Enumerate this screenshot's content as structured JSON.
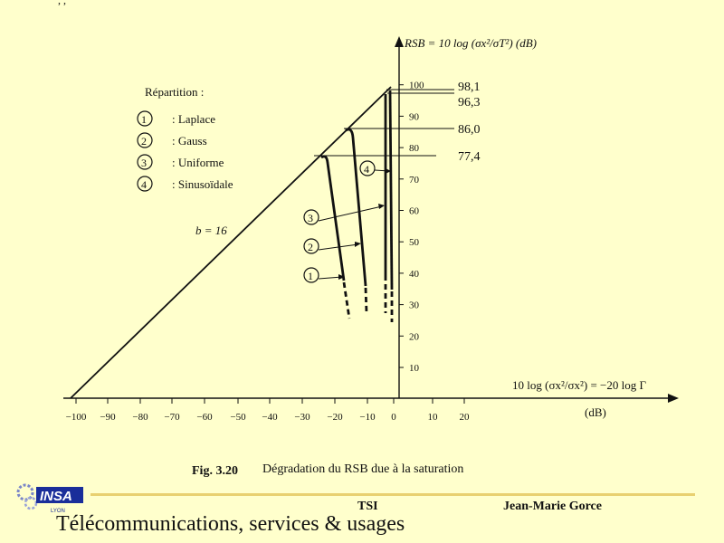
{
  "figure": {
    "y_axis_label": "RSB = 10 log (σx²/σT²) (dB)",
    "x_axis_label": "10 log (σx²/σx²) = −20 log Γ",
    "x_unit": "(dB)",
    "y_ticks": [
      "10",
      "20",
      "30",
      "40",
      "50",
      "60",
      "70",
      "80",
      "90",
      "100"
    ],
    "x_ticks": [
      "−100",
      "−90",
      "−80",
      "−70",
      "−60",
      "−50",
      "−40",
      "−30",
      "−20",
      "−10",
      "0",
      "10",
      "20"
    ],
    "legend_title": "Répartition :",
    "legend": [
      {
        "num": "1",
        "label": ": Laplace"
      },
      {
        "num": "2",
        "label": ": Gauss"
      },
      {
        "num": "3",
        "label": ": Uniforme"
      },
      {
        "num": "4",
        "label": ": Sinusoïdale"
      }
    ],
    "line_label": "b = 16",
    "level_values": [
      "98,1",
      "96,3",
      "86,0",
      "77,4"
    ],
    "caption_num": "Fig. 3.20",
    "caption_text": "Dégradation du RSB due à la saturation",
    "corner_mark": ", ,"
  },
  "footer": {
    "tsi": "TSI",
    "author": "Jean-Marie Gorce",
    "course": "Télécommunications, services & usages",
    "logo_text": "INSA",
    "logo_sub": "LYON"
  },
  "colors": {
    "background": "#ffffcc",
    "footer_rule": "#e8d070",
    "logo_blue": "#1a2e9a"
  }
}
